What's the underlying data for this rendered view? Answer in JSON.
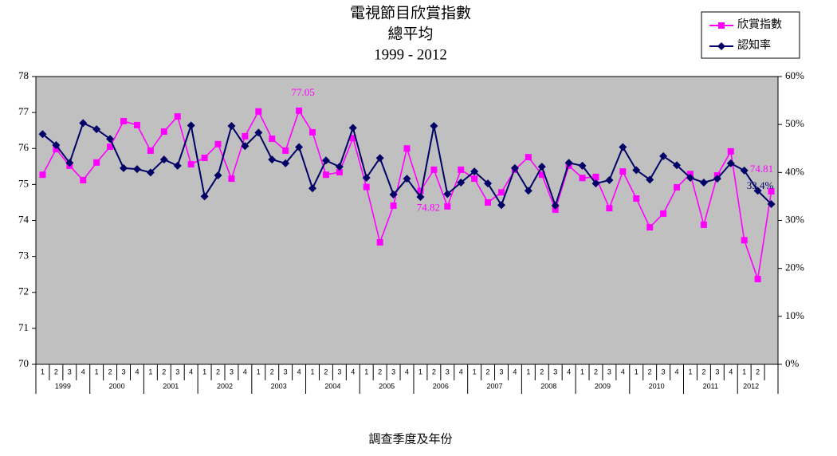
{
  "chart_data": {
    "type": "line",
    "title": [
      "電視節目欣賞指數",
      "總平均",
      "1999  -  2012"
    ],
    "x_label": "調查季度及年份",
    "categories": [
      "1",
      "2",
      "3",
      "4",
      "1",
      "2",
      "3",
      "4",
      "1",
      "2",
      "3",
      "4",
      "1",
      "2",
      "3",
      "4",
      "1",
      "2",
      "3",
      "4",
      "1",
      "2",
      "3",
      "4",
      "1",
      "2",
      "3",
      "4",
      "1",
      "2",
      "3",
      "4",
      "1",
      "2",
      "3",
      "4",
      "1",
      "2",
      "3",
      "4",
      "1",
      "2",
      "3",
      "4",
      "1",
      "2",
      "3",
      "4",
      "1",
      "2",
      "3",
      "4",
      "1",
      "2",
      null
    ],
    "years": [
      "1999",
      "2000",
      "2001",
      "2002",
      "2003",
      "2004",
      "2005",
      "2006",
      "2007",
      "2008",
      "2009",
      "2010",
      "2011",
      "2012"
    ],
    "ylim": [
      70,
      78
    ],
    "yticks": [
      70,
      71,
      72,
      73,
      74,
      75,
      76,
      77,
      78
    ],
    "y2lim": [
      0,
      60
    ],
    "y2ticks": [
      {
        "value": 0,
        "label": "0%"
      },
      {
        "value": 10,
        "label": "10%"
      },
      {
        "value": 20,
        "label": "20%"
      },
      {
        "value": 30,
        "label": "30%"
      },
      {
        "value": 40,
        "label": "40%"
      },
      {
        "value": 50,
        "label": "50%"
      },
      {
        "value": 60,
        "label": "60%"
      }
    ],
    "plot_background": "#c0c0c0",
    "legend": "top-right",
    "series": [
      {
        "name": "欣賞指數",
        "color": "#ff00ff",
        "marker": "square",
        "values": [
          75.27,
          75.98,
          75.52,
          75.12,
          75.61,
          76.05,
          76.76,
          76.65,
          75.94,
          76.47,
          76.89,
          75.56,
          75.74,
          76.12,
          75.16,
          76.34,
          77.03,
          76.27,
          75.94,
          77.05,
          76.45,
          75.27,
          75.34,
          76.29,
          74.93,
          73.39,
          74.41,
          76.0,
          74.82,
          75.41,
          74.39,
          75.41,
          75.16,
          74.5,
          74.78,
          75.41,
          75.76,
          75.27,
          74.3,
          75.52,
          75.18,
          75.21,
          74.34,
          75.36,
          74.61,
          73.81,
          74.19,
          74.92,
          75.29,
          73.88,
          75.25,
          75.92,
          73.45,
          72.37,
          74.81
        ],
        "value_labels": [
          null,
          null,
          null,
          null,
          null,
          null,
          null,
          null,
          null,
          null,
          null,
          null,
          null,
          null,
          null,
          null,
          null,
          null,
          null,
          "77.05",
          null,
          null,
          null,
          null,
          null,
          null,
          null,
          null,
          "74.82",
          null,
          null,
          null,
          null,
          null,
          null,
          null,
          null,
          null,
          null,
          null,
          null,
          null,
          null,
          null,
          null,
          null,
          null,
          null,
          null,
          null,
          null,
          null,
          null,
          null,
          "74.81"
        ]
      },
      {
        "name": "認知率",
        "color": "#000066",
        "marker": "diamond",
        "axis": "y2",
        "values": [
          48.0,
          45.7,
          42.0,
          50.3,
          49.0,
          47.0,
          40.9,
          40.7,
          40.0,
          42.7,
          41.4,
          49.8,
          35.0,
          39.4,
          49.7,
          45.5,
          48.3,
          42.7,
          41.9,
          45.3,
          36.7,
          42.5,
          41.2,
          49.3,
          38.9,
          43.0,
          35.4,
          38.7,
          34.9,
          49.7,
          35.5,
          37.9,
          40.2,
          37.7,
          33.2,
          40.9,
          36.2,
          41.2,
          33.1,
          42.0,
          41.4,
          37.7,
          38.4,
          45.3,
          40.5,
          38.5,
          43.4,
          41.5,
          38.9,
          37.9,
          38.7,
          41.9,
          40.4,
          36.2,
          33.4
        ],
        "value_labels": [
          null,
          null,
          null,
          null,
          null,
          null,
          null,
          null,
          null,
          null,
          null,
          null,
          null,
          null,
          null,
          null,
          null,
          null,
          null,
          null,
          null,
          null,
          null,
          null,
          null,
          null,
          null,
          null,
          null,
          null,
          null,
          null,
          null,
          null,
          null,
          null,
          null,
          null,
          null,
          null,
          null,
          null,
          null,
          null,
          null,
          null,
          null,
          null,
          null,
          null,
          null,
          null,
          null,
          null,
          "33.4%"
        ]
      }
    ]
  }
}
